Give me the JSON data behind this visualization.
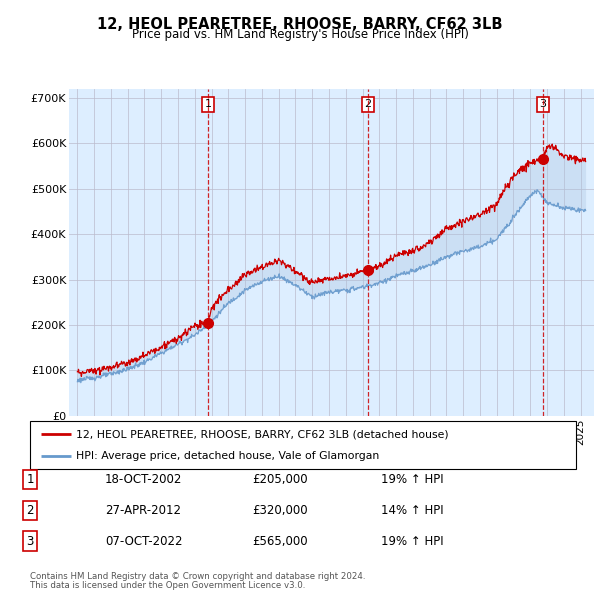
{
  "title": "12, HEOL PEARETREE, RHOOSE, BARRY, CF62 3LB",
  "subtitle": "Price paid vs. HM Land Registry's House Price Index (HPI)",
  "legend_label_red": "12, HEOL PEARETREE, RHOOSE, BARRY, CF62 3LB (detached house)",
  "legend_label_blue": "HPI: Average price, detached house, Vale of Glamorgan",
  "footer_line1": "Contains HM Land Registry data © Crown copyright and database right 2024.",
  "footer_line2": "This data is licensed under the Open Government Licence v3.0.",
  "sales": [
    {
      "num": 1,
      "date": "18-OCT-2002",
      "price": 205000,
      "pct": "19%",
      "dir": "↑"
    },
    {
      "num": 2,
      "date": "27-APR-2012",
      "price": 320000,
      "pct": "14%",
      "dir": "↑"
    },
    {
      "num": 3,
      "date": "07-OCT-2022",
      "price": 565000,
      "pct": "19%",
      "dir": "↑"
    }
  ],
  "sale_dates_decimal": [
    2002.8,
    2012.32,
    2022.77
  ],
  "sale_prices": [
    205000,
    320000,
    565000
  ],
  "ylim": [
    0,
    720000
  ],
  "yticks": [
    0,
    100000,
    200000,
    300000,
    400000,
    500000,
    600000,
    700000
  ],
  "ytick_labels": [
    "£0",
    "£100K",
    "£200K",
    "£300K",
    "£400K",
    "£500K",
    "£600K",
    "£700K"
  ],
  "xlim_start": 1994.5,
  "xlim_end": 2025.8,
  "red_color": "#cc0000",
  "blue_color": "#6699cc",
  "fill_color": "#aac4e0",
  "bg_color": "#ddeeff",
  "grid_color": "#bbbbcc",
  "marker_box_color": "#cc0000",
  "dashed_line_color": "#cc0000",
  "hpi_years": [
    1995.0,
    1996,
    1997,
    1998,
    1999,
    2000,
    2001,
    2002,
    2003,
    2004,
    2005,
    2006,
    2007,
    2008,
    2009,
    2010,
    2011,
    2012,
    2013,
    2014,
    2015,
    2016,
    2017,
    2018,
    2019,
    2020,
    2021,
    2022,
    2022.5,
    2023,
    2024,
    2025.0
  ],
  "hpi_values": [
    78000,
    84000,
    92000,
    103000,
    118000,
    138000,
    158000,
    178000,
    208000,
    248000,
    276000,
    296000,
    308000,
    288000,
    262000,
    272000,
    276000,
    283000,
    292000,
    308000,
    318000,
    332000,
    350000,
    362000,
    372000,
    388000,
    438000,
    486000,
    495000,
    468000,
    458000,
    452000
  ],
  "prop_years": [
    1995.0,
    1996,
    1997,
    1998,
    1999,
    2000,
    2001,
    2002,
    2002.8,
    2003,
    2004,
    2005,
    2006,
    2007,
    2008,
    2009,
    2010,
    2011,
    2012,
    2012.32,
    2013,
    2014,
    2015,
    2016,
    2017,
    2018,
    2019,
    2020,
    2021,
    2022,
    2022.77,
    2023,
    2023.5,
    2024,
    2025.0
  ],
  "prop_values": [
    95000,
    100000,
    108000,
    118000,
    133000,
    152000,
    170000,
    198000,
    205000,
    238000,
    278000,
    310000,
    328000,
    342000,
    318000,
    292000,
    302000,
    308000,
    317000,
    320000,
    328000,
    352000,
    362000,
    382000,
    412000,
    428000,
    442000,
    468000,
    528000,
    558000,
    565000,
    595000,
    590000,
    572000,
    562000
  ]
}
